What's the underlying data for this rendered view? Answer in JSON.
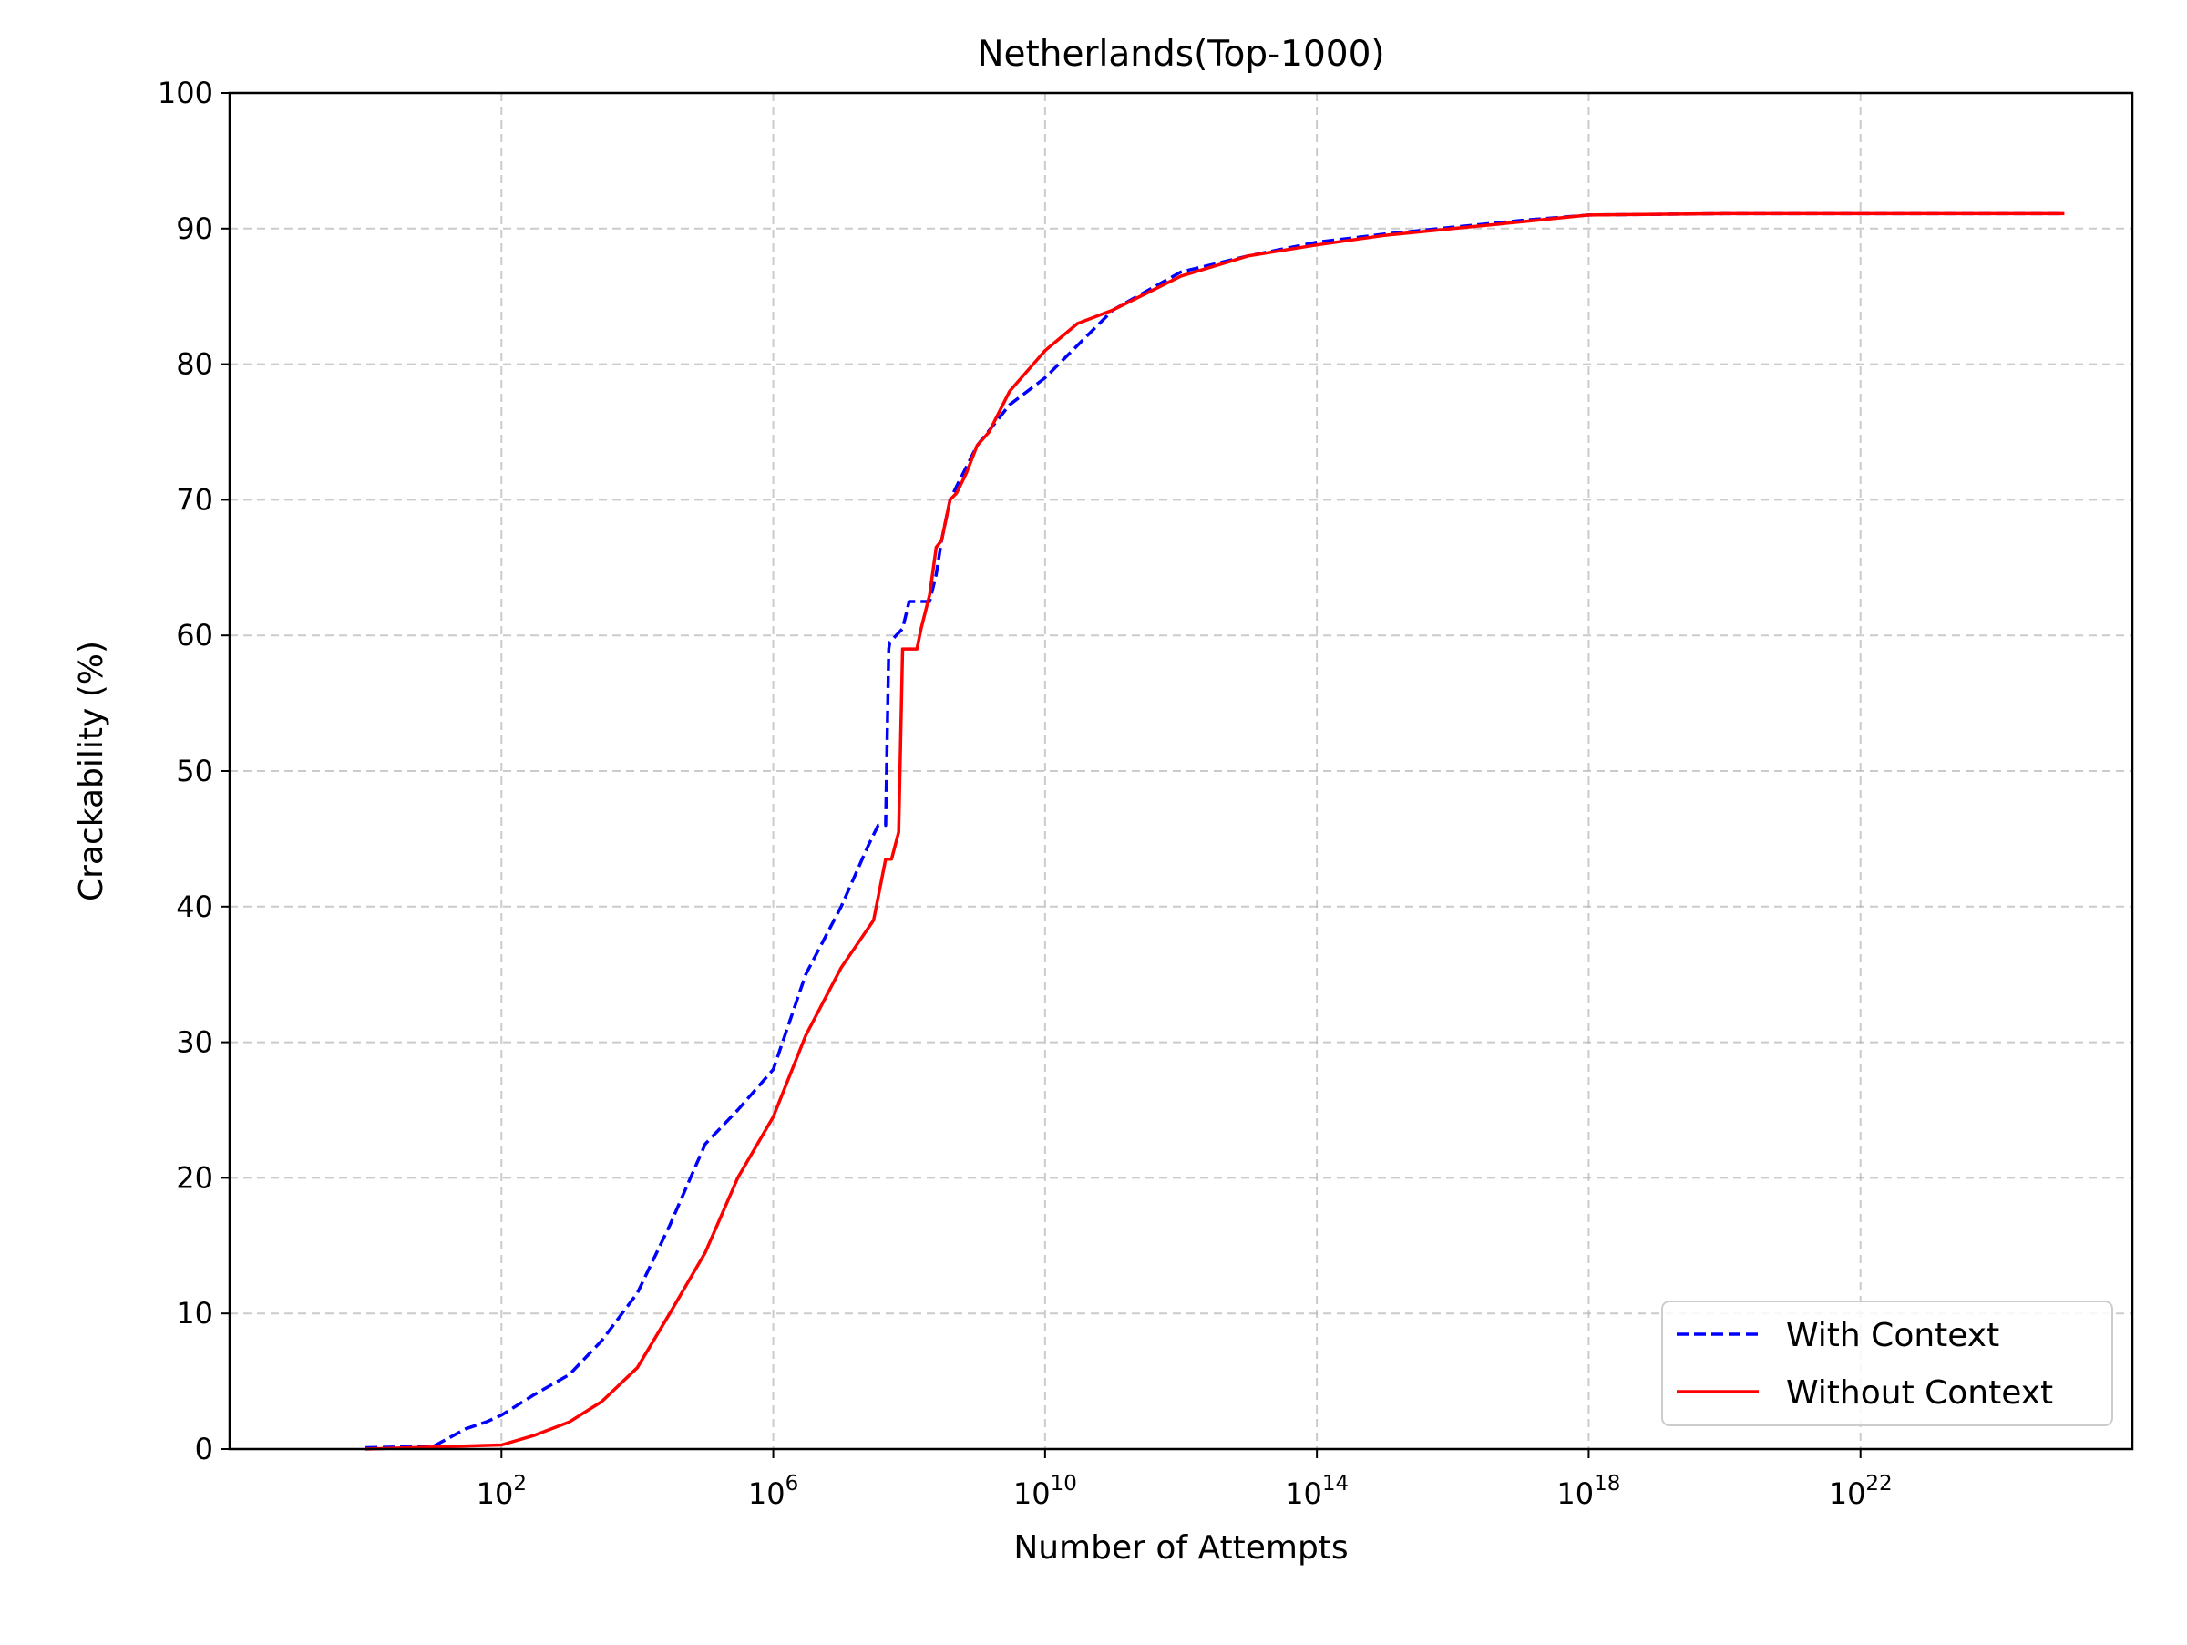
{
  "chart_data": {
    "type": "line",
    "title": "Netherlands(Top-1000)",
    "xlabel": "Number of Attempts",
    "ylabel": "Crackability (%)",
    "x_scale": "log",
    "xlim": [
      0.01,
      1e+26
    ],
    "ylim": [
      0,
      100
    ],
    "grid": true,
    "legend_position": "lower-right",
    "x_ticks": [
      {
        "value": 100.0,
        "base": "10",
        "exp": "2"
      },
      {
        "value": 1000000.0,
        "base": "10",
        "exp": "6"
      },
      {
        "value": 10000000000.0,
        "base": "10",
        "exp": "10"
      },
      {
        "value": 100000000000000.0,
        "base": "10",
        "exp": "14"
      },
      {
        "value": 1e+18,
        "base": "10",
        "exp": "18"
      },
      {
        "value": 1e+22,
        "base": "10",
        "exp": "22"
      }
    ],
    "y_ticks": [
      {
        "value": 0,
        "label": "0"
      },
      {
        "value": 10,
        "label": "10"
      },
      {
        "value": 20,
        "label": "20"
      },
      {
        "value": 30,
        "label": "30"
      },
      {
        "value": 40,
        "label": "40"
      },
      {
        "value": 50,
        "label": "50"
      },
      {
        "value": 60,
        "label": "60"
      },
      {
        "value": 70,
        "label": "70"
      },
      {
        "value": 80,
        "label": "80"
      },
      {
        "value": 90,
        "label": "90"
      },
      {
        "value": 100,
        "label": "100"
      }
    ],
    "series": [
      {
        "name": "With Context",
        "color": "#0000ff",
        "style": "dashed",
        "x": [
          1,
          10,
          30,
          60,
          100,
          300,
          1000,
          3000,
          10000.0,
          30000.0,
          100000.0,
          300000.0,
          1000000.0,
          3000000.0,
          10000000.0,
          25000000.0,
          35000000.0,
          45000000.0,
          50000000.0,
          52000000.0,
          80000000.0,
          100000000.0,
          150000000.0,
          200000000.0,
          250000000.0,
          300000000.0,
          400000000.0,
          500000000.0,
          1000000000.0,
          3000000000.0,
          10000000000.0,
          100000000000.0,
          1000000000000.0,
          10000000000000.0,
          100000000000000.0,
          1000000000000000.0,
          1e+16,
          1e+17,
          1e+18,
          1e+20,
          1e+22,
          1e+24,
          1e+25
        ],
        "y": [
          0.1,
          0.2,
          1.5,
          2.0,
          2.5,
          4.0,
          5.5,
          8.0,
          11.5,
          16.5,
          22.5,
          25.0,
          28.0,
          35.0,
          40.0,
          44.5,
          46.0,
          46.0,
          59.0,
          59.5,
          60.5,
          62.5,
          62.5,
          62.5,
          64.5,
          67.0,
          70.0,
          71.0,
          74.0,
          77.0,
          79.0,
          84.0,
          86.8,
          88.0,
          89.0,
          89.6,
          90.1,
          90.6,
          91.0,
          91.1,
          91.1,
          91.1,
          91.1
        ]
      },
      {
        "name": "Without Context",
        "color": "#ff0000",
        "style": "solid",
        "x": [
          1,
          100,
          300,
          1000,
          3000,
          10000.0,
          30000.0,
          100000.0,
          300000.0,
          1000000.0,
          3000000.0,
          10000000.0,
          30000000.0,
          45000000.0,
          55000000.0,
          70000000.0,
          80000000.0,
          100000000.0,
          120000000.0,
          130000000.0,
          150000000.0,
          200000000.0,
          250000000.0,
          300000000.0,
          400000000.0,
          500000000.0,
          700000000.0,
          1000000000.0,
          1500000000.0,
          3000000000.0,
          10000000000.0,
          30000000000.0,
          100000000000.0,
          1000000000000.0,
          10000000000000.0,
          100000000000000.0,
          1000000000000000.0,
          1e+16,
          1e+17,
          1e+18,
          1e+20,
          1e+22,
          1e+24,
          1e+25
        ],
        "y": [
          0.0,
          0.3,
          1.0,
          2.0,
          3.5,
          6.0,
          10.0,
          14.5,
          20.0,
          24.5,
          30.5,
          35.5,
          39.0,
          43.5,
          43.5,
          45.5,
          59.0,
          59.0,
          59.0,
          59.0,
          60.5,
          63.0,
          66.5,
          67.0,
          70.0,
          70.5,
          72.0,
          74.0,
          75.0,
          78.0,
          81.0,
          83.0,
          84.0,
          86.5,
          88.0,
          88.8,
          89.5,
          90.0,
          90.5,
          91.0,
          91.1,
          91.1,
          91.1,
          91.1
        ]
      }
    ]
  }
}
